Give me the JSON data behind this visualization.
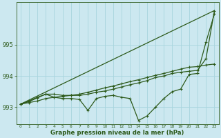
{
  "xlabel": "Graphe pression niveau de la mer (hPa)",
  "background_color": "#cce8f0",
  "grid_color": "#a8d4de",
  "line_color": "#2d5a1b",
  "x_values": [
    0,
    1,
    2,
    3,
    4,
    5,
    6,
    7,
    8,
    9,
    10,
    11,
    12,
    13,
    14,
    15,
    16,
    17,
    18,
    19,
    20,
    21,
    22,
    23
  ],
  "series_straight": [
    993.1,
    993.23,
    993.36,
    993.49,
    993.62,
    993.75,
    993.88,
    994.01,
    994.14,
    994.27,
    994.4,
    994.53,
    994.66,
    994.79,
    994.92,
    995.05,
    995.18,
    995.31,
    995.44,
    995.57,
    995.7,
    995.83,
    995.96,
    996.09
  ],
  "series_gradual": [
    993.1,
    993.15,
    993.2,
    993.28,
    993.32,
    993.35,
    993.38,
    993.42,
    993.48,
    993.55,
    993.62,
    993.68,
    993.75,
    993.82,
    993.88,
    993.95,
    994.02,
    994.08,
    994.15,
    994.22,
    994.28,
    994.3,
    994.35,
    994.38
  ],
  "series_mid": [
    993.1,
    993.18,
    993.3,
    993.42,
    993.42,
    993.38,
    993.38,
    993.38,
    993.42,
    993.48,
    993.52,
    993.58,
    993.65,
    993.72,
    993.78,
    993.85,
    993.95,
    994.0,
    994.08,
    994.12,
    994.15,
    994.18,
    994.55,
    996.08
  ],
  "series_zigzag": [
    993.1,
    993.2,
    993.32,
    993.42,
    993.32,
    993.28,
    993.28,
    993.25,
    992.9,
    993.28,
    993.35,
    993.38,
    993.32,
    993.28,
    992.58,
    992.72,
    993.0,
    993.28,
    993.5,
    993.58,
    994.05,
    994.08,
    995.08,
    995.98
  ],
  "ylim": [
    992.45,
    996.35
  ],
  "yticks": [
    993,
    994,
    995
  ],
  "figsize": [
    3.2,
    2.0
  ],
  "dpi": 100
}
